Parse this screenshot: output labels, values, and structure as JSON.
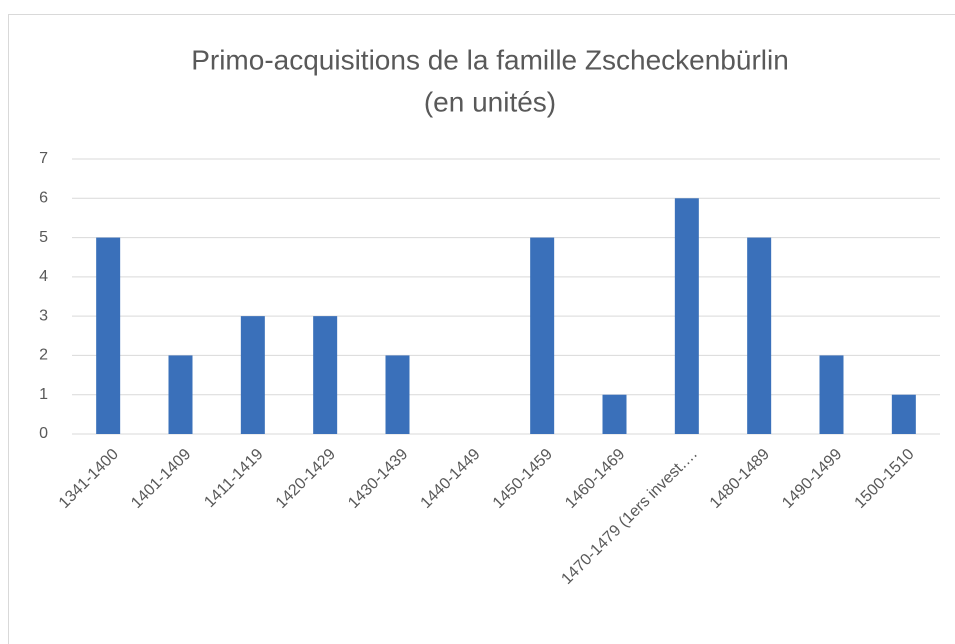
{
  "chart_data": {
    "type": "bar",
    "title": [
      "Primo-acquisitions de la famille Zscheckenbürlin",
      "(en unités)"
    ],
    "categories": [
      "1341-1400",
      "1401-1409",
      "1411-1419",
      "1420-1429",
      "1430-1439",
      "1440-1449",
      "1450-1459",
      "1460-1469",
      "1470-1479 (1ers invest….",
      "1480-1489",
      "1490-1499",
      "1500-1510"
    ],
    "values": [
      5,
      2,
      3,
      3,
      2,
      0,
      5,
      1,
      6,
      5,
      2,
      1
    ],
    "color": "#3a70ba",
    "ylim": [
      0,
      7
    ],
    "yticks": [
      0,
      1,
      2,
      3,
      4,
      5,
      6,
      7
    ],
    "grid": true
  }
}
